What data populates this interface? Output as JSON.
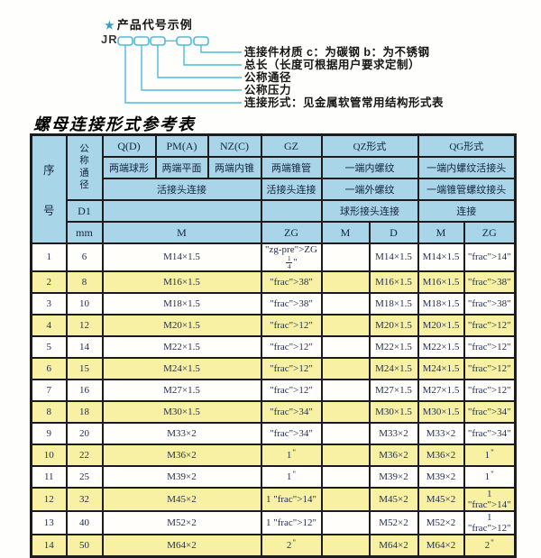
{
  "diagram": {
    "star": "★",
    "heading": "产品代号示例",
    "prefix": "JR",
    "separator": "—",
    "labels": [
      "连接件材质  c：为碳钢  b：为不锈钢",
      "总长（长度可根据用户要求定制）",
      "公称通径",
      "公称压力",
      "连接形式：见金属软管常用结构形式表"
    ]
  },
  "table": {
    "title": "螺母连接形式参考表",
    "header": {
      "serial": "序号",
      "nominal_diameter": "公称通径",
      "d1": "D1",
      "mm": "mm",
      "col_q": "Q(D)",
      "col_q_sub": "两端球形",
      "col_pm": "PM(A)",
      "col_pm_sub": "两端平面",
      "col_nz": "NZ(C)",
      "col_nz_sub": "两端内锥",
      "col_gz": "GZ",
      "col_gz_sub": "两端锥管",
      "col_qz": "QZ形式",
      "col_qz_sub1": "一端内螺纹",
      "col_qz_sub2": "一端外螺纹",
      "col_qz_sub3": "球形接头连接",
      "col_qg": "QG形式",
      "col_qg_sub1": "一端内螺纹活接头",
      "col_qg_sub2": "一端锥管螺纹接头",
      "col_qg_sub3": "连接",
      "union_connect_left": "活接头连接",
      "union_connect_gz": "活接头连接",
      "m": "M",
      "zg": "ZG",
      "d": "D"
    },
    "rows": [
      {
        "no": "1",
        "dn": "6",
        "m": "M14×1.5",
        "gz": "ZG 1/4\"",
        "qz_m": "",
        "qz_d": "M14×1.5",
        "qg_m": "M14×1.5",
        "qg_zg": "1/4\""
      },
      {
        "no": "2",
        "dn": "8",
        "m": "M16×1.5",
        "gz": "3/8\"",
        "qz_m": "",
        "qz_d": "M16×1.5",
        "qg_m": "M16×1.5",
        "qg_zg": "3/8\""
      },
      {
        "no": "3",
        "dn": "10",
        "m": "M18×1.5",
        "gz": "3/8\"",
        "qz_m": "",
        "qz_d": "M18×1.5",
        "qg_m": "M18×1.5",
        "qg_zg": "3/8\""
      },
      {
        "no": "4",
        "dn": "12",
        "m": "M20×1.5",
        "gz": "1/2\"",
        "qz_m": "",
        "qz_d": "M20×1.5",
        "qg_m": "M20×1.5",
        "qg_zg": "1/2\""
      },
      {
        "no": "5",
        "dn": "14",
        "m": "M22×1.5",
        "gz": "1/2\"",
        "qz_m": "",
        "qz_d": "M22×1.5",
        "qg_m": "M22×1.5",
        "qg_zg": "1/2\""
      },
      {
        "no": "6",
        "dn": "15",
        "m": "M24×1.5",
        "gz": "1/2\"",
        "qz_m": "",
        "qz_d": "M24×1.5",
        "qg_m": "M24×1.5",
        "qg_zg": "1/2\""
      },
      {
        "no": "7",
        "dn": "16",
        "m": "M27×1.5",
        "gz": "1/2\"",
        "qz_m": "",
        "qz_d": "M27×1.5",
        "qg_m": "M27×1.5",
        "qg_zg": "1/2\""
      },
      {
        "no": "8",
        "dn": "18",
        "m": "M30×1.5",
        "gz": "3/4\"",
        "qz_m": "",
        "qz_d": "M30×1.5",
        "qg_m": "M30×1.5",
        "qg_zg": "3/4\""
      },
      {
        "no": "9",
        "dn": "20",
        "m": "M33×2",
        "gz": "3/4\"",
        "qz_m": "",
        "qz_d": "M33×2",
        "qg_m": "M33×2",
        "qg_zg": "3/4\""
      },
      {
        "no": "10",
        "dn": "22",
        "m": "M36×2",
        "gz": "1\"",
        "qz_m": "",
        "qz_d": "M36×2",
        "qg_m": "M36×2",
        "qg_zg": "1\""
      },
      {
        "no": "11",
        "dn": "25",
        "m": "M39×2",
        "gz": "1\"",
        "qz_m": "",
        "qz_d": "M39×2",
        "qg_m": "M39×2",
        "qg_zg": "1\""
      },
      {
        "no": "12",
        "dn": "32",
        "m": "M45×2",
        "gz": "1 1/4\"",
        "qz_m": "",
        "qz_d": "M45×2",
        "qg_m": "M45×2",
        "qg_zg": "1 1/4\""
      },
      {
        "no": "13",
        "dn": "40",
        "m": "M52×2",
        "gz": "1 1/2\"",
        "qz_m": "",
        "qz_d": "M52×2",
        "qg_m": "M52×2",
        "qg_zg": "1 1/2\""
      },
      {
        "no": "14",
        "dn": "50",
        "m": "M64×2",
        "gz": "2\"",
        "qz_m": "",
        "qz_d": "M64×2",
        "qg_m": "M64×2",
        "qg_zg": "2\""
      }
    ]
  },
  "colors": {
    "accent_cyan": "#49bcd9",
    "header_blue": "#a8d5e8",
    "row_yellow": "#f8f1a4",
    "border_dark": "#1c1c1c",
    "table_text": "#1f2c50"
  }
}
